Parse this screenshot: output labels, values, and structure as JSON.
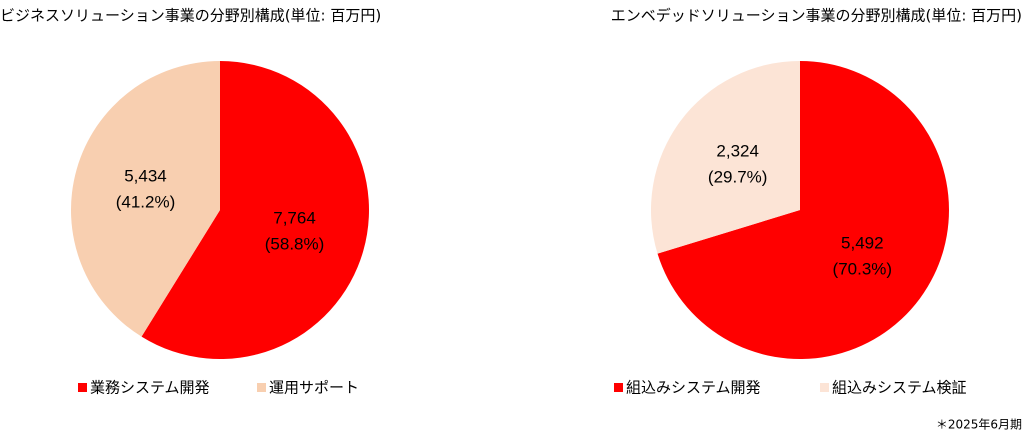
{
  "chart_data": [
    {
      "type": "pie",
      "title": "ビジネスソリューション事業の分野別構成(単位: 百万円)",
      "categories": [
        "業務システム開発",
        "運用サポート"
      ],
      "values": [
        7764,
        5434
      ],
      "value_labels": [
        "7,764",
        "5,434"
      ],
      "percent_labels": [
        "(58.8%)",
        "(41.2%)"
      ],
      "colors": [
        "#ff0000",
        "#f8cfb0"
      ]
    },
    {
      "type": "pie",
      "title": "エンベデッドソリューション事業の分野別構成(単位: 百万円)",
      "categories": [
        "組込みシステム開発",
        "組込みシステム検証"
      ],
      "values": [
        5492,
        2324
      ],
      "value_labels": [
        "5,492",
        "2,324"
      ],
      "percent_labels": [
        "(70.3%)",
        "(29.7%)"
      ],
      "colors": [
        "#ff0000",
        "#fce4d6"
      ]
    }
  ],
  "note": "＊2025年6月期"
}
